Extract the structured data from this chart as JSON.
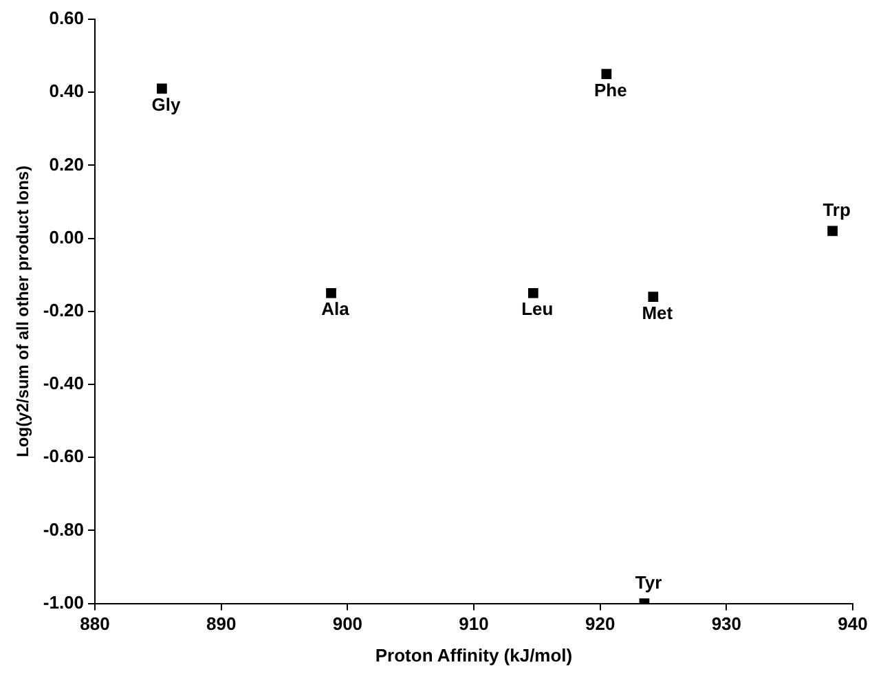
{
  "chart_data": {
    "type": "scatter",
    "xlabel": "Proton Affinity (kJ/mol)",
    "ylabel": "Log(y2/sum of all other product Ions)",
    "x": [
      885.3,
      898.7,
      914.7,
      920.5,
      924.2,
      923.5,
      938.4
    ],
    "values": [
      0.41,
      -0.15,
      -0.15,
      0.45,
      -0.16,
      -1.0,
      0.02
    ],
    "color": "#000000",
    "marker": "square",
    "xlim": [
      880,
      940
    ],
    "xticks": [
      880,
      890,
      900,
      910,
      920,
      930,
      940
    ],
    "ylim": [
      -1.0,
      0.6
    ],
    "yticks": [
      {
        "value": -1.0,
        "label": "-1.00"
      },
      {
        "value": -0.8,
        "label": "-0.80"
      },
      {
        "value": -0.6,
        "label": "-0.60"
      },
      {
        "value": -0.4,
        "label": "-0.40"
      },
      {
        "value": -0.2,
        "label": "-0.20"
      },
      {
        "value": 0,
        "label": "0.00"
      },
      {
        "value": 0.2,
        "label": "0.20"
      },
      {
        "value": 0.4,
        "label": "0.40"
      },
      {
        "value": 0.6,
        "label": "0.60"
      }
    ],
    "grid": false,
    "annotations": [
      {
        "text": "Gly",
        "x": 885.3,
        "y": 0.41
      },
      {
        "text": "Ala",
        "x": 898.7,
        "y": -0.15
      },
      {
        "text": "Leu",
        "x": 914.7,
        "y": -0.15
      },
      {
        "text": "Phe",
        "x": 920.5,
        "y": 0.45
      },
      {
        "text": "Met",
        "x": 924.2,
        "y": -0.16
      },
      {
        "text": "Tyr",
        "x": 923.5,
        "y": -1.0
      },
      {
        "text": "Trp",
        "x": 938.4,
        "y": 0.02
      }
    ]
  }
}
